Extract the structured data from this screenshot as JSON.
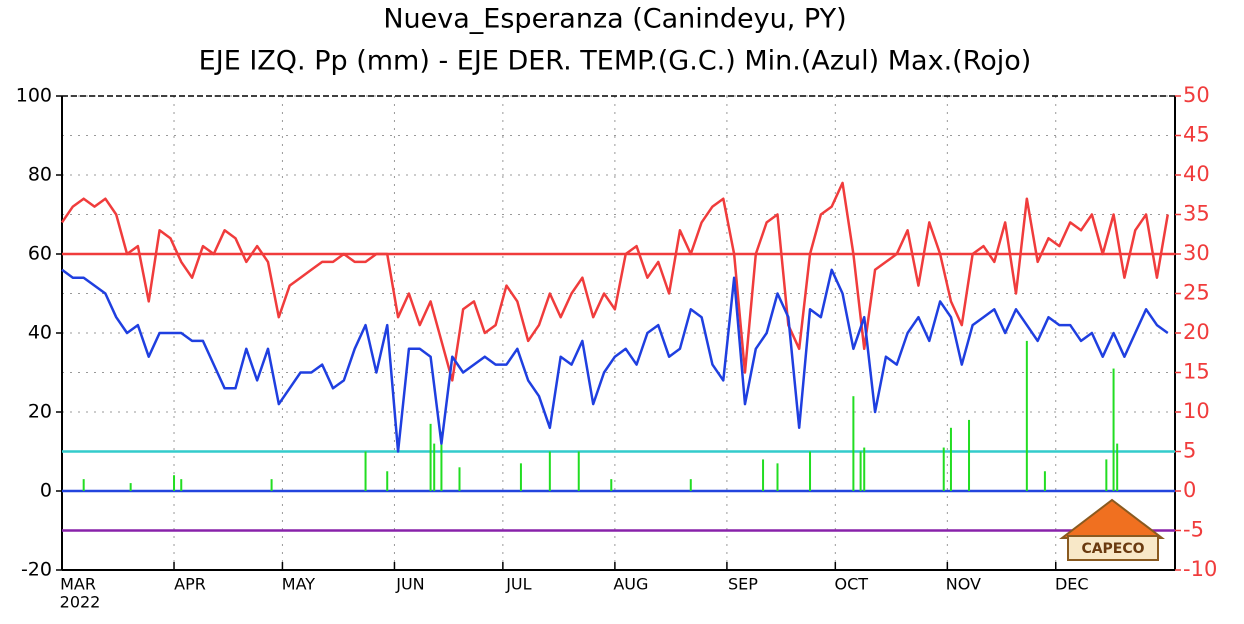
{
  "chart_data": {
    "type": "line",
    "title": [
      "Nueva_Esperanza (Canindeyu, PY)",
      "EJE IZQ. Pp (mm) - EJE DER. TEMP.(G.C.) Min.(Azul) Max.(Rojo)"
    ],
    "x": [
      0,
      3,
      6,
      9,
      12,
      15,
      18,
      21,
      24,
      27,
      30,
      33,
      36,
      39,
      42,
      45,
      48,
      51,
      54,
      57,
      60,
      63,
      66,
      69,
      72,
      75,
      78,
      81,
      84,
      87,
      90,
      93,
      96,
      99,
      102,
      105,
      108,
      111,
      114,
      117,
      120,
      123,
      126,
      129,
      132,
      135,
      138,
      141,
      144,
      147,
      150,
      153,
      156,
      159,
      162,
      165,
      168,
      171,
      174,
      177,
      180,
      183,
      186,
      189,
      192,
      195,
      198,
      201,
      204,
      207,
      210,
      213,
      216,
      219,
      222,
      225,
      228,
      231,
      234,
      237,
      240,
      243,
      246,
      249,
      252,
      255,
      258,
      261,
      264,
      267,
      270,
      273,
      276,
      279,
      282,
      285,
      288,
      291,
      294,
      297,
      300,
      303,
      306
    ],
    "series": [
      {
        "color": "#f03c3c",
        "axis": "y2",
        "values": [
          34,
          36,
          37,
          36,
          37,
          35,
          30,
          31,
          24,
          33,
          32,
          29,
          27,
          31,
          30,
          33,
          32,
          29,
          31,
          29,
          22,
          26,
          27,
          28,
          29,
          29,
          30,
          29,
          29,
          30,
          30,
          22,
          25,
          21,
          24,
          19,
          14,
          23,
          24,
          20,
          21,
          26,
          24,
          19,
          21,
          25,
          22,
          25,
          27,
          22,
          25,
          23,
          30,
          31,
          27,
          29,
          25,
          33,
          30,
          34,
          36,
          37,
          30,
          15,
          30,
          34,
          35,
          21,
          18,
          30,
          35,
          36,
          39,
          30,
          18,
          28,
          29,
          30,
          33,
          26,
          34,
          30,
          24,
          21,
          30,
          31,
          29,
          34,
          25,
          37,
          29,
          32,
          31,
          34,
          33,
          35,
          30,
          35,
          27,
          33,
          35,
          27,
          35
        ]
      },
      {
        "color": "#1f3fe0",
        "axis": "y2",
        "values": [
          28,
          27,
          27,
          26,
          25,
          22,
          20,
          21,
          17,
          20,
          20,
          20,
          19,
          19,
          16,
          13,
          13,
          18,
          14,
          18,
          11,
          13,
          15,
          15,
          16,
          13,
          14,
          18,
          21,
          15,
          21,
          5,
          18,
          18,
          17,
          6,
          17,
          15,
          16,
          17,
          16,
          16,
          18,
          14,
          12,
          8,
          17,
          16,
          19,
          11,
          15,
          17,
          18,
          16,
          20,
          21,
          17,
          18,
          23,
          22,
          16,
          14,
          27,
          11,
          18,
          20,
          25,
          22,
          8,
          23,
          22,
          28,
          25,
          18,
          22,
          10,
          17,
          16,
          20,
          22,
          19,
          24,
          22,
          16,
          21,
          22,
          23,
          20,
          23,
          21,
          19,
          22,
          21,
          21,
          19,
          20,
          17,
          20,
          17,
          20,
          23,
          21,
          20
        ]
      }
    ],
    "bars": {
      "color": "#22dd22",
      "x": [
        6,
        19,
        31,
        33,
        58,
        84,
        90,
        102,
        103,
        105,
        110,
        127,
        135,
        143,
        152,
        174,
        194,
        198,
        207,
        219,
        221,
        222,
        244,
        246,
        251,
        267,
        272,
        289,
        291,
        292
      ],
      "values": [
        3,
        2,
        4,
        3,
        3,
        10,
        5,
        17,
        12,
        15,
        6,
        7,
        10,
        10,
        3,
        3,
        8,
        7,
        10,
        24,
        10,
        11,
        11,
        16,
        18,
        38,
        5,
        8,
        31,
        12
      ]
    },
    "hlines": [
      {
        "value": 30,
        "axis": "y2",
        "color": "#f03c3c"
      },
      {
        "value": 5,
        "axis": "y2",
        "color": "#33cccc"
      },
      {
        "value": 0,
        "axis": "y",
        "color": "#2244dd"
      },
      {
        "value": -10,
        "axis": "y",
        "color": "#8822aa"
      }
    ],
    "xlim": [
      0,
      308
    ],
    "xticks": [
      {
        "value": 0,
        "label": "MAR"
      },
      {
        "value": 31,
        "label": "APR"
      },
      {
        "value": 61,
        "label": "MAY"
      },
      {
        "value": 92,
        "label": "JUN"
      },
      {
        "value": 122,
        "label": "JUL"
      },
      {
        "value": 153,
        "label": "AUG"
      },
      {
        "value": 184,
        "label": "SEP"
      },
      {
        "value": 214,
        "label": "OCT"
      },
      {
        "value": 245,
        "label": "NOV"
      },
      {
        "value": 275,
        "label": "DEC"
      }
    ],
    "x_sublabel": "2022",
    "ylim": [
      -20,
      100
    ],
    "yticks": [
      -20,
      0,
      20,
      40,
      60,
      80,
      100
    ],
    "y2lim": [
      -10,
      50
    ],
    "y2ticks": [
      -10,
      -5,
      0,
      5,
      10,
      15,
      20,
      25,
      30,
      35,
      40,
      45,
      50
    ],
    "grid": true,
    "logo": "CAPECO"
  }
}
